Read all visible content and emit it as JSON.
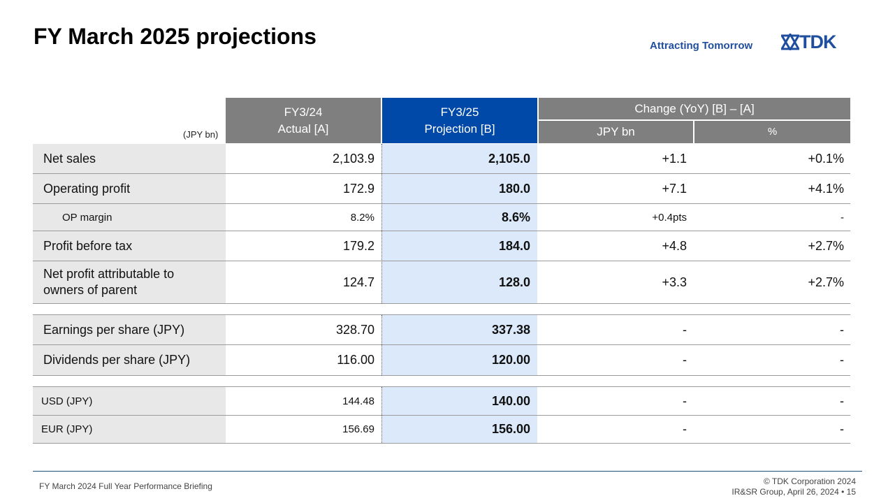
{
  "title": "FY March 2025 projections",
  "brand": {
    "tagline": "Attracting Tomorrow",
    "logo_text": "TDK",
    "color": "#1f4e9e"
  },
  "table": {
    "unit": "(JPY bn)",
    "headers": {
      "actual_line1": "FY3/24",
      "actual_line2": "Actual [A]",
      "proj_line1": "FY3/25",
      "proj_line2": "Projection [B]",
      "change": "Change (YoY) [B] – [A]",
      "change_jpy": "JPY bn",
      "change_pct": "%"
    },
    "rows": [
      {
        "label": "Net sales",
        "actual": "2,103.9",
        "projection": "2,105.0",
        "change_jpy": "+1.1",
        "change_pct": "+0.1%"
      },
      {
        "label": "Operating profit",
        "actual": "172.9",
        "projection": "180.0",
        "change_jpy": "+7.1",
        "change_pct": "+4.1%"
      },
      {
        "label": "OP margin",
        "actual": "8.2%",
        "projection": "8.6%",
        "change_jpy": "+0.4pts",
        "change_pct": "-"
      },
      {
        "label": "Profit before tax",
        "actual": "179.2",
        "projection": "184.0",
        "change_jpy": "+4.8",
        "change_pct": "+2.7%"
      },
      {
        "label": "Net profit attributable to owners of parent",
        "actual": "124.7",
        "projection": "128.0",
        "change_jpy": "+3.3",
        "change_pct": "+2.7%"
      },
      {
        "label": "Earnings per share (JPY)",
        "actual": "328.70",
        "projection": "337.38",
        "change_jpy": "-",
        "change_pct": "-"
      },
      {
        "label": "Dividends per share (JPY)",
        "actual": "116.00",
        "projection": "120.00",
        "change_jpy": "-",
        "change_pct": "-"
      },
      {
        "label": "USD (JPY)",
        "actual": "144.48",
        "projection": "140.00",
        "change_jpy": "-",
        "change_pct": "-"
      },
      {
        "label": "EUR (JPY)",
        "actual": "156.69",
        "projection": "156.00",
        "change_jpy": "-",
        "change_pct": "-"
      }
    ]
  },
  "footer": {
    "left": "FY March 2024 Full Year Performance Briefing",
    "copyright": "© TDK Corporation 2024",
    "group": "IR&SR Group, April 26, 2024 • 15"
  }
}
